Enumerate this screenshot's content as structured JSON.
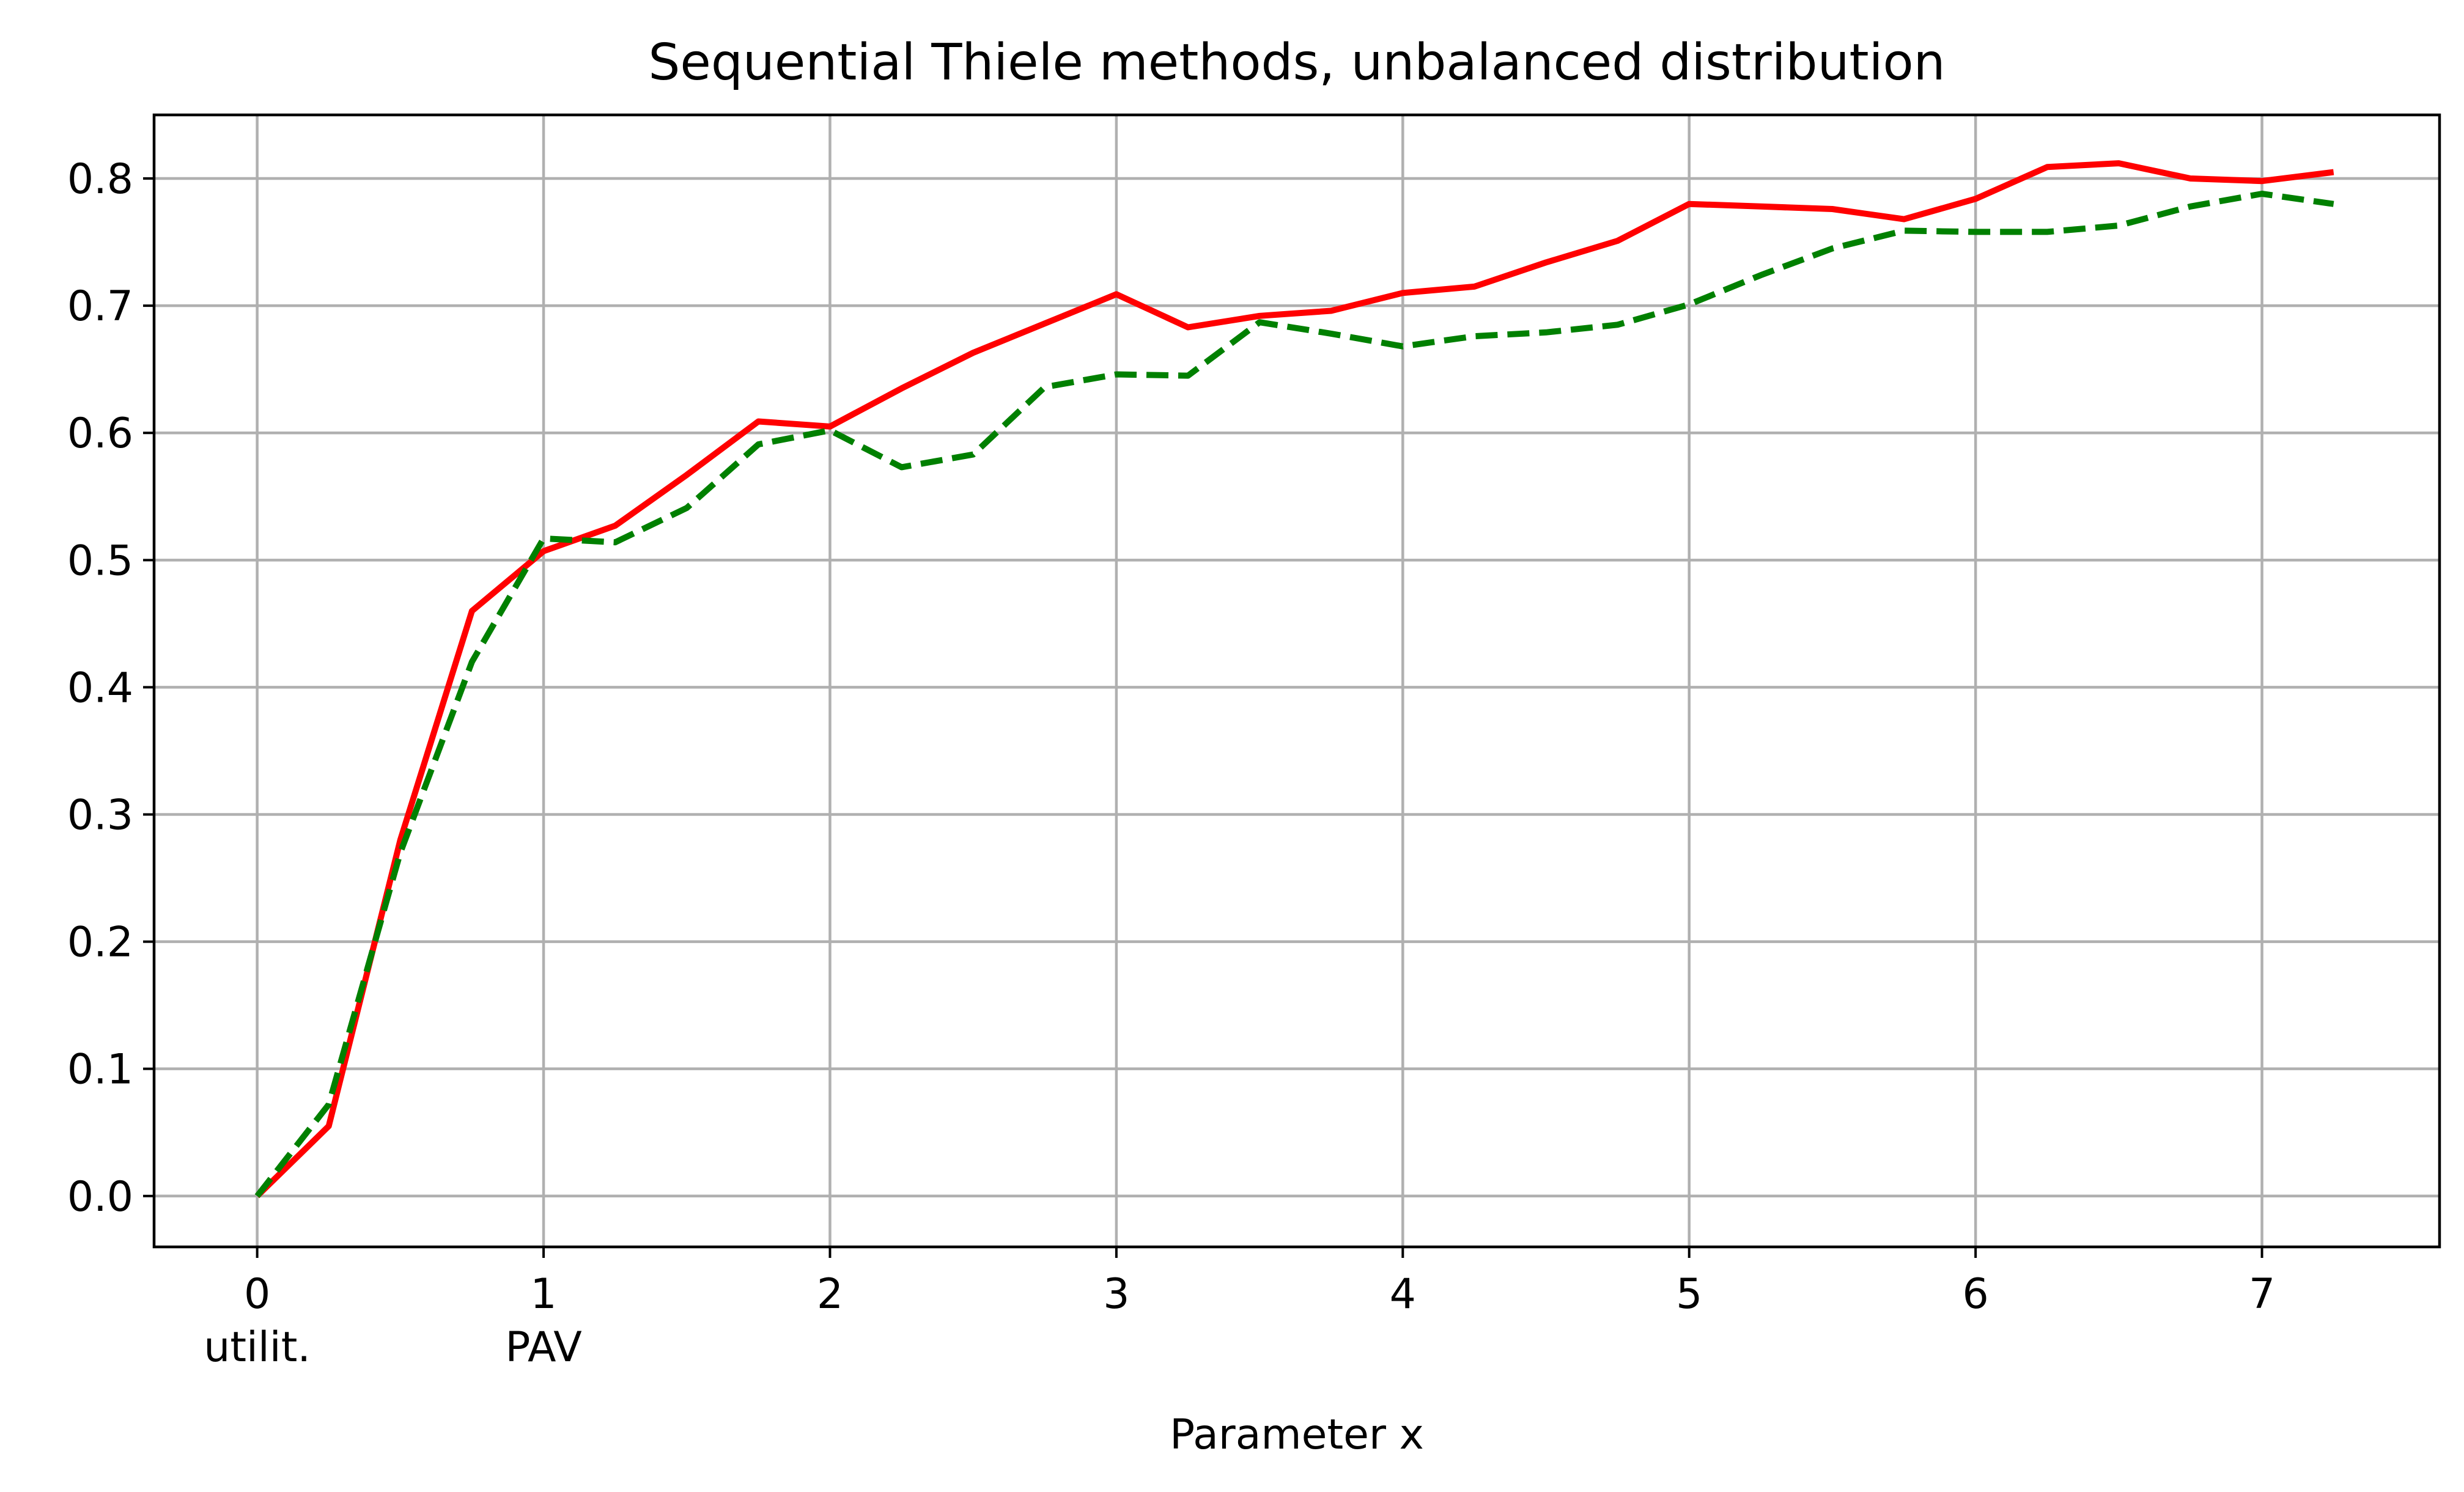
{
  "chart_data": {
    "type": "line",
    "title": "Sequential Thiele methods, unbalanced distribution",
    "xlabel": "Parameter x",
    "ylabel": "",
    "xlim": [
      -0.36,
      7.62
    ],
    "ylim": [
      -0.04,
      0.85
    ],
    "grid": true,
    "x_ticks": [
      0,
      1,
      2,
      3,
      4,
      5,
      6,
      7
    ],
    "x_tick_labels": [
      "0",
      "1",
      "2",
      "3",
      "4",
      "5",
      "6",
      "7"
    ],
    "x_tick_sublabels": [
      {
        "x": 0,
        "label": "utilit."
      },
      {
        "x": 1,
        "label": "PAV"
      }
    ],
    "y_ticks": [
      0.0,
      0.1,
      0.2,
      0.3,
      0.4,
      0.5,
      0.6,
      0.7,
      0.8
    ],
    "y_tick_labels": [
      "0.0",
      "0.1",
      "0.2",
      "0.3",
      "0.4",
      "0.5",
      "0.6",
      "0.7",
      "0.8"
    ],
    "x": [
      0,
      0.25,
      0.5,
      0.75,
      1.0,
      1.25,
      1.5,
      1.75,
      2.0,
      2.25,
      2.5,
      2.75,
      3.0,
      3.25,
      3.5,
      3.75,
      4.0,
      4.25,
      4.5,
      4.75,
      5.0,
      5.25,
      5.5,
      5.75,
      6.0,
      6.25,
      6.5,
      6.75,
      7.0,
      7.25
    ],
    "series": [
      {
        "color": "#ff0000",
        "style": "solid",
        "values": [
          0.0,
          0.055,
          0.28,
          0.46,
          0.507,
          0.527,
          0.567,
          0.609,
          0.605,
          0.635,
          0.663,
          0.686,
          0.709,
          0.683,
          0.692,
          0.696,
          0.71,
          0.715,
          0.734,
          0.751,
          0.78,
          0.778,
          0.776,
          0.768,
          0.784,
          0.809,
          0.812,
          0.8,
          0.798,
          0.805
        ]
      },
      {
        "color": "#008000",
        "style": "dashed",
        "values": [
          0.0,
          0.072,
          0.27,
          0.42,
          0.517,
          0.514,
          0.541,
          0.591,
          0.602,
          0.573,
          0.583,
          0.636,
          0.646,
          0.645,
          0.687,
          0.678,
          0.668,
          0.676,
          0.679,
          0.685,
          0.701,
          0.724,
          0.745,
          0.759,
          0.758,
          0.758,
          0.763,
          0.778,
          0.788,
          0.78
        ]
      }
    ]
  }
}
